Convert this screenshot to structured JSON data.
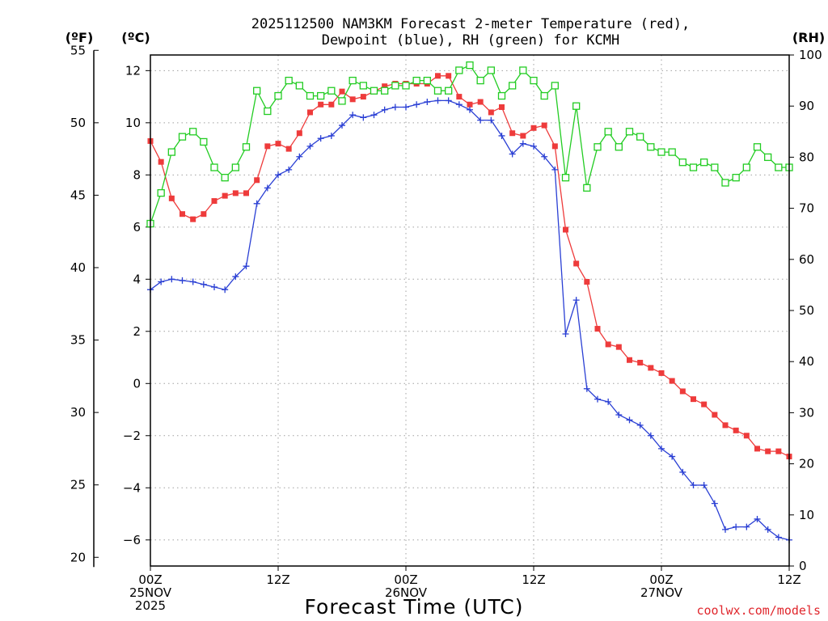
{
  "chart_data": {
    "type": "line",
    "title_lines": [
      "2025112500 NAM3KM Forecast 2-meter Temperature (red),",
      "Dewpoint (blue), RH (green) for KCMH"
    ],
    "xlabel": "Forecast Time (UTC)",
    "credit": "coolwx.com/models",
    "unit_labels": {
      "fahrenheit": "(ºF)",
      "celsius": "(ºC)",
      "rh": "(RH)"
    },
    "x_range_hours": [
      0,
      60
    ],
    "x_ticks": [
      {
        "hour": 0,
        "lines": [
          "00Z",
          "25NOV",
          "2025"
        ]
      },
      {
        "hour": 12,
        "lines": [
          "12Z"
        ]
      },
      {
        "hour": 24,
        "lines": [
          "00Z",
          "26NOV"
        ]
      },
      {
        "hour": 36,
        "lines": [
          "12Z"
        ]
      },
      {
        "hour": 48,
        "lines": [
          "00Z",
          "27NOV"
        ]
      },
      {
        "hour": 60,
        "lines": [
          "12Z"
        ]
      }
    ],
    "celsius_axis": {
      "range": [
        -7,
        12.6
      ],
      "ticks": [
        -6,
        -4,
        -2,
        0,
        2,
        4,
        6,
        8,
        10,
        12
      ],
      "labels": [
        "−6",
        "−4",
        "−2",
        "0",
        "2",
        "4",
        "6",
        "8",
        "10",
        "12"
      ]
    },
    "fahrenheit_axis": {
      "range": [
        20,
        55
      ],
      "ticks": [
        20,
        25,
        30,
        35,
        40,
        45,
        50,
        55
      ],
      "labels": [
        "20",
        "25",
        "30",
        "35",
        "40",
        "45",
        "50",
        "55"
      ]
    },
    "rh_axis": {
      "range": [
        0,
        100
      ],
      "ticks": [
        0,
        10,
        20,
        30,
        40,
        50,
        60,
        70,
        80,
        90,
        100
      ],
      "labels": [
        "0",
        "10",
        "20",
        "30",
        "40",
        "50",
        "60",
        "70",
        "80",
        "90",
        "100"
      ]
    },
    "series": [
      {
        "name": "2-meter Temperature",
        "units": "C",
        "color": "#ee3b3b",
        "marker": "filled-square",
        "hours": [
          0,
          1,
          2,
          3,
          4,
          5,
          6,
          7,
          8,
          9,
          10,
          11,
          12,
          13,
          14,
          15,
          16,
          17,
          18,
          19,
          20,
          21,
          22,
          23,
          24,
          25,
          26,
          27,
          28,
          29,
          30,
          31,
          32,
          33,
          34,
          35,
          36,
          37,
          38,
          39,
          40,
          41,
          42,
          43,
          44,
          45,
          46,
          47,
          48,
          49,
          50,
          51,
          52,
          53,
          54,
          55,
          56,
          57,
          58,
          59,
          60
        ],
        "values": [
          9.3,
          8.5,
          7.1,
          6.5,
          6.3,
          6.5,
          7.0,
          7.2,
          7.3,
          7.3,
          7.8,
          9.1,
          9.2,
          9.0,
          9.6,
          10.4,
          10.7,
          10.7,
          11.2,
          10.9,
          11.0,
          11.2,
          11.4,
          11.5,
          11.5,
          11.5,
          11.5,
          11.8,
          11.8,
          11.0,
          10.7,
          10.8,
          10.4,
          10.6,
          9.6,
          9.5,
          9.8,
          9.9,
          9.1,
          5.9,
          4.6,
          3.9,
          2.1,
          1.5,
          1.4,
          0.9,
          0.8,
          0.6,
          0.4,
          0.1,
          -0.3,
          -0.6,
          -0.8,
          -1.2,
          -1.6,
          -1.8,
          -2.0,
          -2.5,
          -2.6,
          -2.6,
          -2.8
        ]
      },
      {
        "name": "Dewpoint",
        "units": "C",
        "color": "#2a3fd4",
        "marker": "plus",
        "hours": [
          0,
          1,
          2,
          3,
          4,
          5,
          6,
          7,
          8,
          9,
          10,
          11,
          12,
          13,
          14,
          15,
          16,
          17,
          18,
          19,
          20,
          21,
          22,
          23,
          24,
          25,
          26,
          27,
          28,
          29,
          30,
          31,
          32,
          33,
          34,
          35,
          36,
          37,
          38,
          39,
          40,
          41,
          42,
          43,
          44,
          45,
          46,
          47,
          48,
          49,
          50,
          51,
          52,
          53,
          54,
          55,
          56,
          57,
          58,
          59,
          60
        ],
        "values": [
          3.6,
          3.9,
          4.0,
          3.95,
          3.9,
          3.8,
          3.7,
          3.6,
          4.1,
          4.5,
          6.9,
          7.5,
          8.0,
          8.2,
          8.7,
          9.1,
          9.4,
          9.5,
          9.9,
          10.3,
          10.2,
          10.3,
          10.5,
          10.6,
          10.6,
          10.7,
          10.8,
          10.85,
          10.85,
          10.7,
          10.5,
          10.1,
          10.1,
          9.5,
          8.8,
          9.2,
          9.1,
          8.7,
          8.2,
          1.9,
          3.2,
          -0.2,
          -0.6,
          -0.7,
          -1.2,
          -1.4,
          -1.6,
          -2.0,
          -2.5,
          -2.8,
          -3.4,
          -3.9,
          -3.9,
          -4.6,
          -5.6,
          -5.5,
          -5.5,
          -5.2,
          -5.6,
          -5.9,
          -6.0
        ]
      },
      {
        "name": "RH",
        "units": "%",
        "color": "#22cc22",
        "marker": "open-square",
        "hours": [
          0,
          1,
          2,
          3,
          4,
          5,
          6,
          7,
          8,
          9,
          10,
          11,
          12,
          13,
          14,
          15,
          16,
          17,
          18,
          19,
          20,
          21,
          22,
          23,
          24,
          25,
          26,
          27,
          28,
          29,
          30,
          31,
          32,
          33,
          34,
          35,
          36,
          37,
          38,
          39,
          40,
          41,
          42,
          43,
          44,
          45,
          46,
          47,
          48,
          49,
          50,
          51,
          52,
          53,
          54,
          55,
          56,
          57,
          58,
          59,
          60
        ],
        "values": [
          67,
          73,
          81,
          84,
          85,
          83,
          78,
          76,
          78,
          82,
          93,
          89,
          92,
          95,
          94,
          92,
          92,
          93,
          91,
          95,
          94,
          93,
          93,
          94,
          94,
          95,
          95,
          93,
          93,
          97,
          98,
          95,
          97,
          92,
          94,
          97,
          95,
          92,
          94,
          76,
          90,
          74,
          82,
          85,
          82,
          85,
          84,
          82,
          81,
          81,
          79,
          78,
          79,
          78,
          75,
          76,
          78,
          82,
          80,
          78,
          78
        ]
      }
    ]
  }
}
